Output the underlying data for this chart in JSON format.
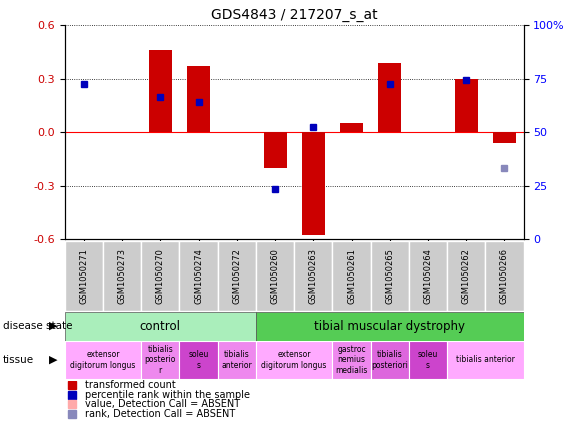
{
  "title": "GDS4843 / 217207_s_at",
  "samples": [
    "GSM1050271",
    "GSM1050273",
    "GSM1050270",
    "GSM1050274",
    "GSM1050272",
    "GSM1050260",
    "GSM1050263",
    "GSM1050261",
    "GSM1050265",
    "GSM1050264",
    "GSM1050262",
    "GSM1050266"
  ],
  "bar_values": [
    0.0,
    0.0,
    0.46,
    0.37,
    0.0,
    -0.2,
    -0.58,
    0.05,
    0.39,
    0.0,
    0.3,
    -0.06
  ],
  "dot_values": [
    0.27,
    null,
    0.2,
    0.17,
    null,
    -0.32,
    0.03,
    null,
    0.27,
    null,
    0.295,
    -0.2
  ],
  "dot_absent": [
    false,
    false,
    false,
    false,
    false,
    false,
    false,
    false,
    false,
    false,
    false,
    true
  ],
  "bar_absent": [
    false,
    false,
    false,
    false,
    true,
    false,
    false,
    false,
    false,
    false,
    false,
    false
  ],
  "ylim": [
    -0.6,
    0.6
  ],
  "yticks": [
    -0.6,
    -0.3,
    0.0,
    0.3,
    0.6
  ],
  "right_yticks": [
    0,
    25,
    50,
    75,
    100
  ],
  "right_ylim": [
    0,
    100
  ],
  "bar_color": "#cc0000",
  "bar_absent_color": "#ffaaaa",
  "dot_color": "#0000bb",
  "dot_absent_color": "#8888bb",
  "disease_control_color": "#aaeebb",
  "disease_dystrophy_color": "#55cc55",
  "tissue_data": [
    {
      "start": 0,
      "end": 1,
      "label": "extensor\ndigitorum longus",
      "color": "#ffaaff"
    },
    {
      "start": 2,
      "end": 2,
      "label": "tibialis\nposterio\nr",
      "color": "#ee88ee"
    },
    {
      "start": 3,
      "end": 3,
      "label": "soleu\ns",
      "color": "#cc44cc"
    },
    {
      "start": 4,
      "end": 4,
      "label": "tibialis\nanterior",
      "color": "#ee88ee"
    },
    {
      "start": 5,
      "end": 6,
      "label": "extensor\ndigitorum longus",
      "color": "#ffaaff"
    },
    {
      "start": 7,
      "end": 7,
      "label": "gastroc\nnemius\nmedialis",
      "color": "#ee88ee"
    },
    {
      "start": 8,
      "end": 8,
      "label": "tibialis\nposteriori",
      "color": "#dd66dd"
    },
    {
      "start": 9,
      "end": 9,
      "label": "soleu\ns",
      "color": "#cc44cc"
    },
    {
      "start": 10,
      "end": 11,
      "label": "tibialis anterior",
      "color": "#ffaaff"
    }
  ],
  "legend_items": [
    {
      "color": "#cc0000",
      "label": "transformed count"
    },
    {
      "color": "#0000bb",
      "label": "percentile rank within the sample"
    },
    {
      "color": "#ffaaaa",
      "label": "value, Detection Call = ABSENT"
    },
    {
      "color": "#8888bb",
      "label": "rank, Detection Call = ABSENT"
    }
  ]
}
